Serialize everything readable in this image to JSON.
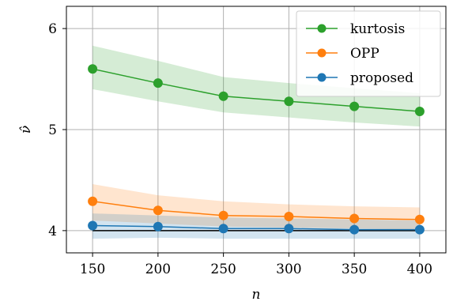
{
  "chart_data": {
    "type": "line",
    "title": "",
    "xlabel": "n",
    "ylabel": "ν̂",
    "x": [
      150,
      200,
      250,
      300,
      350,
      400
    ],
    "xticks": [
      "150",
      "200",
      "250",
      "300",
      "350",
      "400"
    ],
    "yticks": [
      "4",
      "5",
      "6"
    ],
    "xlim": [
      130,
      420
    ],
    "ylim": [
      3.78,
      6.22
    ],
    "grid": true,
    "legend_position": "top-right",
    "reference_line": 4,
    "series": [
      {
        "name": "kurtosis",
        "color": "#2ca02c",
        "values": [
          5.6,
          5.46,
          5.33,
          5.28,
          5.23,
          5.18
        ],
        "band_upper": [
          5.83,
          5.68,
          5.52,
          5.46,
          5.41,
          5.36
        ],
        "band_lower": [
          5.4,
          5.28,
          5.17,
          5.12,
          5.07,
          5.03
        ]
      },
      {
        "name": "OPP",
        "color": "#ff7f0e",
        "values": [
          4.29,
          4.2,
          4.15,
          4.14,
          4.12,
          4.11
        ],
        "band_upper": [
          4.46,
          4.35,
          4.29,
          4.26,
          4.24,
          4.23
        ],
        "band_lower": [
          4.1,
          4.07,
          4.04,
          4.03,
          4.02,
          4.01
        ]
      },
      {
        "name": "proposed",
        "color": "#1f77b4",
        "values": [
          4.05,
          4.04,
          4.02,
          4.02,
          4.01,
          4.01
        ],
        "band_upper": [
          4.17,
          4.15,
          4.13,
          4.12,
          4.11,
          4.1
        ],
        "band_lower": [
          3.92,
          3.93,
          3.92,
          3.92,
          3.92,
          3.92
        ]
      }
    ]
  }
}
